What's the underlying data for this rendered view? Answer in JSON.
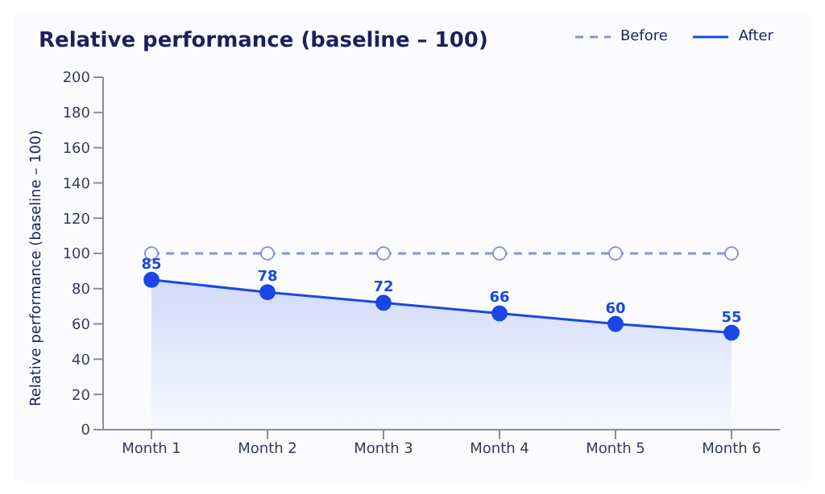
{
  "chart_data": {
    "type": "line",
    "title": "Relative performance (baseline – 100)",
    "ylabel": "Relative performance (baseline – 100)",
    "categories": [
      "Month 1",
      "Month 2",
      "Month 3",
      "Month 4",
      "Month 5",
      "Month 6"
    ],
    "series": [
      {
        "name": "Before",
        "color": "#8a8fe0",
        "line_style": "dashed",
        "values": [
          100,
          100,
          100,
          100,
          100,
          100
        ]
      },
      {
        "name": "After",
        "type": "area",
        "color": "#1a47e6",
        "line_style": "solid",
        "values": [
          85,
          78,
          72,
          66,
          60,
          55
        ],
        "value_labels": [
          "85",
          "78",
          "72",
          "66",
          "60",
          "55"
        ]
      }
    ],
    "ylim": [
      0,
      200
    ],
    "yticks": [
      0,
      20,
      40,
      60,
      80,
      100,
      120,
      140,
      160,
      180,
      200
    ],
    "grid": false,
    "legend": "top right",
    "marker": "circle"
  }
}
